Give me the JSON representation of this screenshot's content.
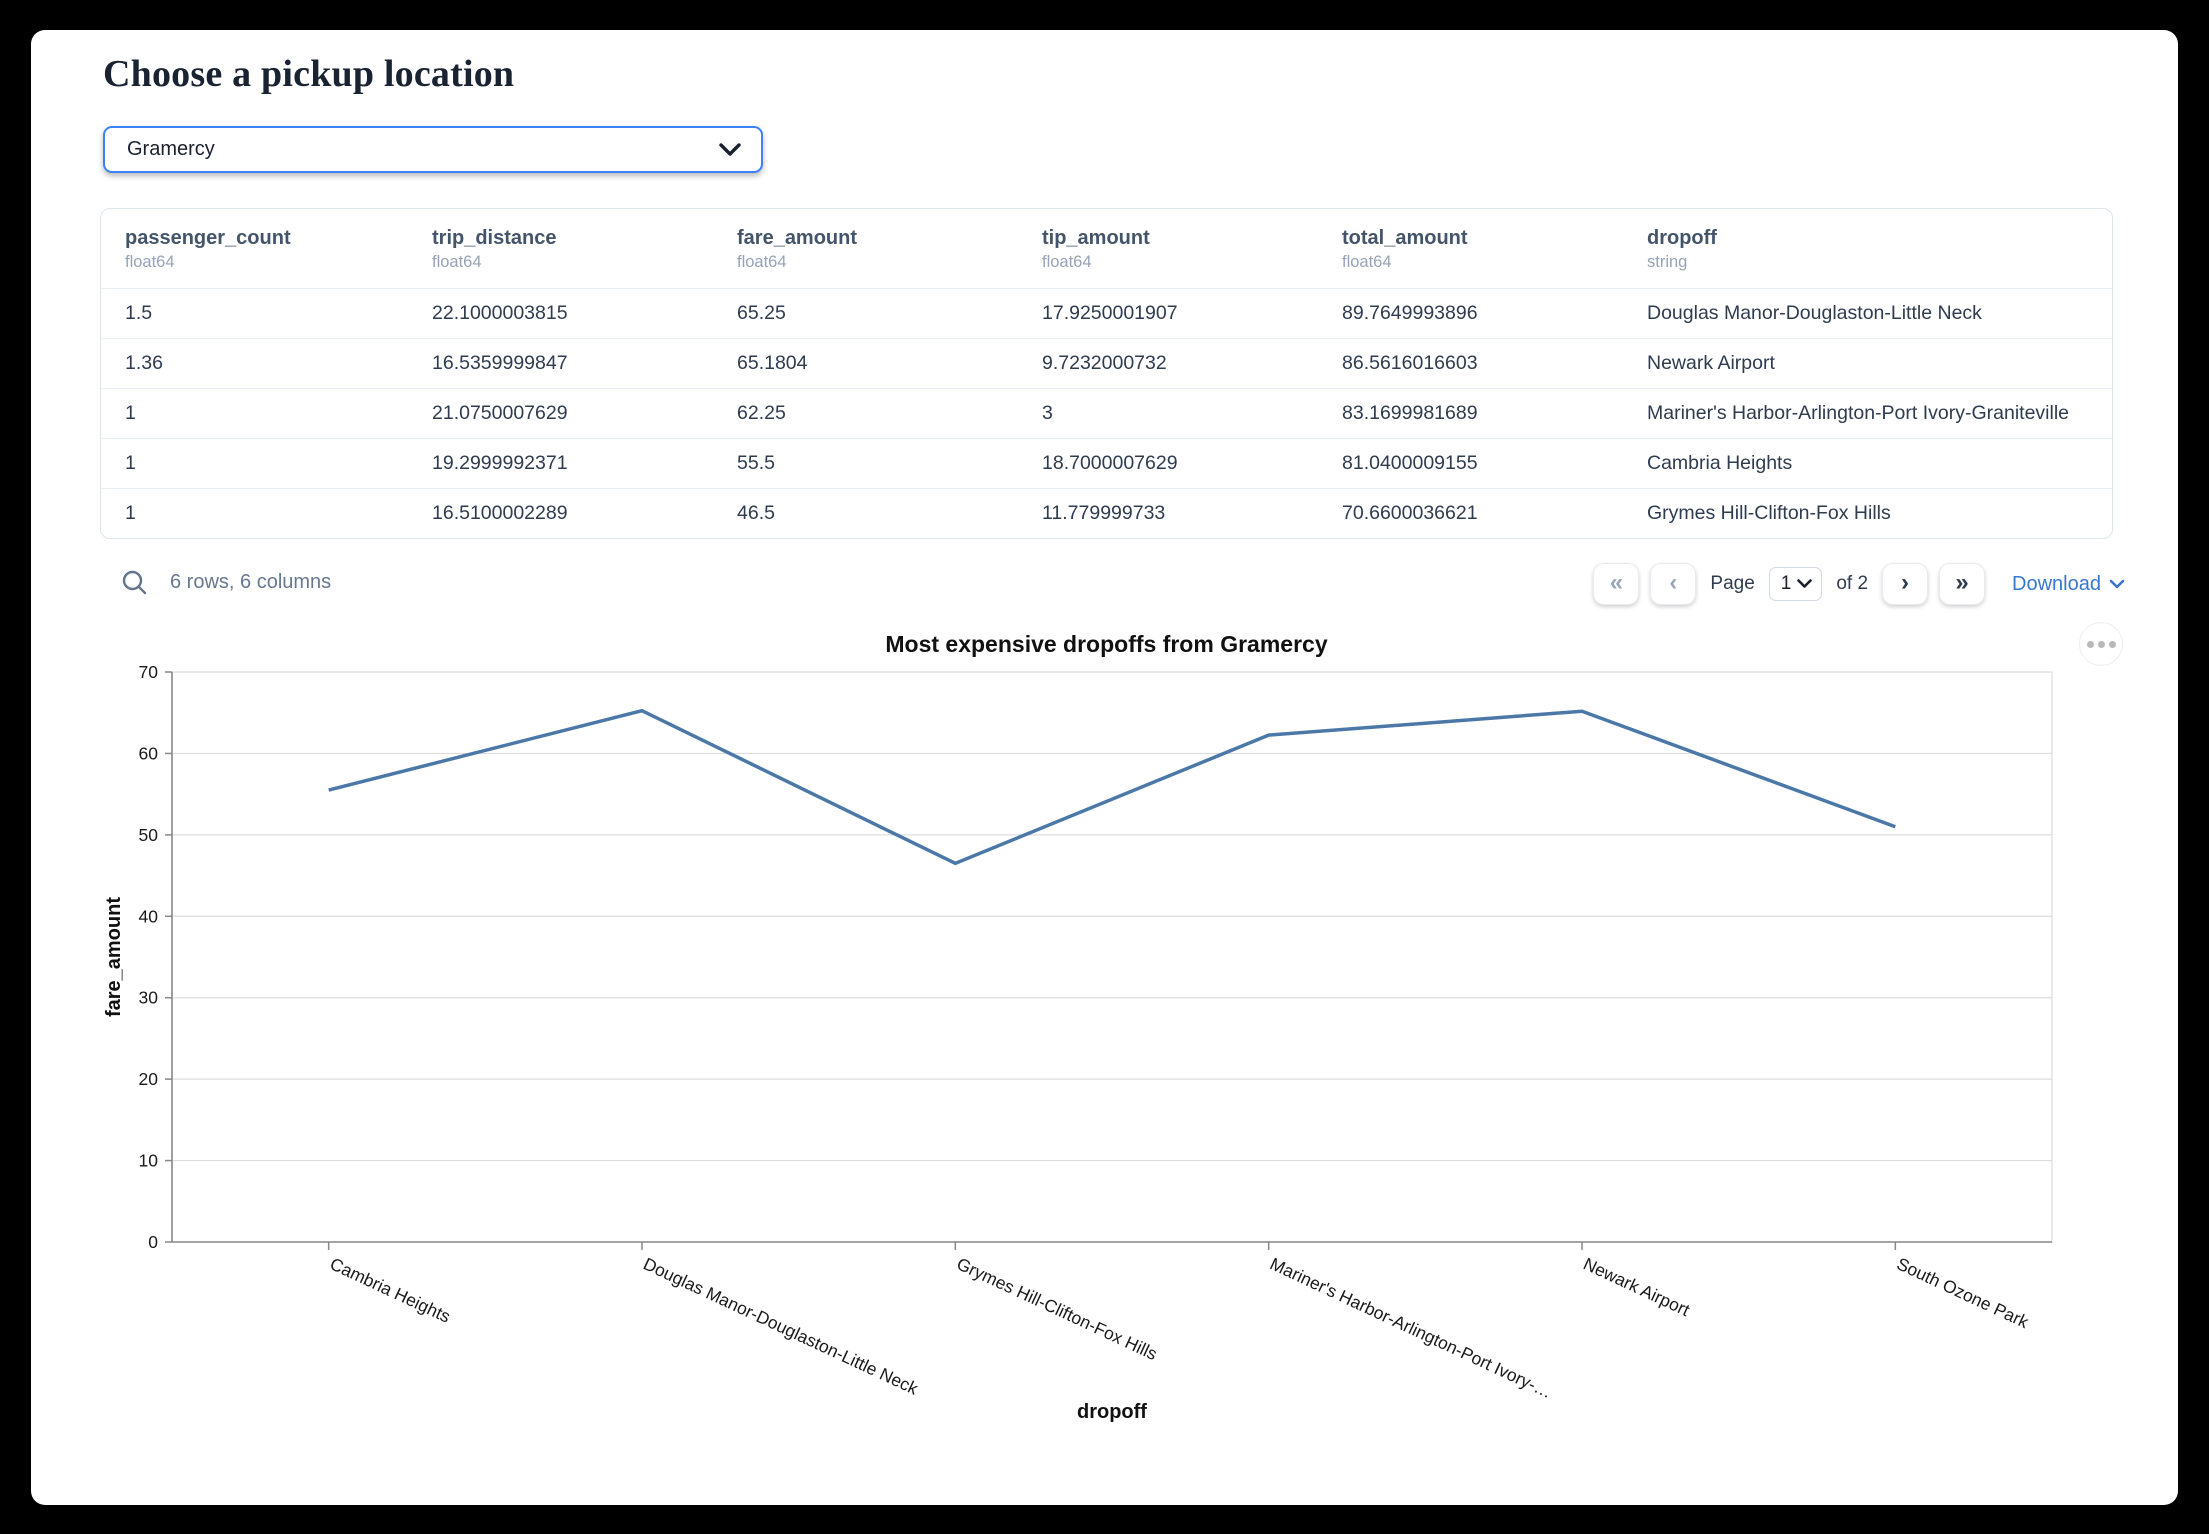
{
  "header": {
    "title": "Choose a pickup location"
  },
  "pickup_select": {
    "value": "Gramercy",
    "chevron_icon": "chevron-down-icon"
  },
  "table": {
    "columns": [
      {
        "name": "passenger_count",
        "type": "float64"
      },
      {
        "name": "trip_distance",
        "type": "float64"
      },
      {
        "name": "fare_amount",
        "type": "float64"
      },
      {
        "name": "tip_amount",
        "type": "float64"
      },
      {
        "name": "total_amount",
        "type": "float64"
      },
      {
        "name": "dropoff",
        "type": "string"
      }
    ],
    "rows": [
      [
        "1.5",
        "22.1000003815",
        "65.25",
        "17.9250001907",
        "89.7649993896",
        "Douglas Manor-Douglaston-Little Neck"
      ],
      [
        "1.36",
        "16.5359999847",
        "65.1804",
        "9.7232000732",
        "86.5616016603",
        "Newark Airport"
      ],
      [
        "1",
        "21.0750007629",
        "62.25",
        "3",
        "83.1699981689",
        "Mariner's Harbor-Arlington-Port Ivory-Graniteville"
      ],
      [
        "1",
        "19.2999992371",
        "55.5",
        "18.7000007629",
        "81.0400009155",
        "Cambria Heights"
      ],
      [
        "1",
        "16.5100002289",
        "46.5",
        "11.779999733",
        "70.6600036621",
        "Grymes Hill-Clifton-Fox Hills"
      ]
    ]
  },
  "table_footer": {
    "summary": "6 rows, 6 columns",
    "first_label": "«",
    "prev_label": "‹",
    "page_label": "Page",
    "page_value": "1",
    "of_label": "of 2",
    "next_label": "›",
    "last_label": "»",
    "download_label": "Download"
  },
  "chart_data": {
    "type": "line",
    "title": "Most expensive dropoffs from Gramercy",
    "xlabel": "dropoff",
    "ylabel": "fare_amount",
    "categories": [
      "Cambria Heights",
      "Douglas Manor-Douglaston-Little Neck",
      "Grymes Hill-Clifton-Fox Hills",
      "Mariner's Harbor-Arlington-Port Ivory-…",
      "Newark Airport",
      "South Ozone Park"
    ],
    "values": [
      55.5,
      65.25,
      46.5,
      62.25,
      65.1804,
      51
    ],
    "ylim": [
      0,
      70
    ],
    "yticks": [
      0,
      10,
      20,
      30,
      40,
      50,
      60,
      70
    ],
    "grid": true,
    "legend": "none",
    "line_color": "#4c78a8",
    "x_label_angle": 25
  },
  "colors": {
    "accent_blue": "#3b82f6",
    "link_blue": "#3778d0",
    "line_blue": "#4c78a8",
    "grid_gray": "#dddddd",
    "axis_gray": "#888888"
  }
}
